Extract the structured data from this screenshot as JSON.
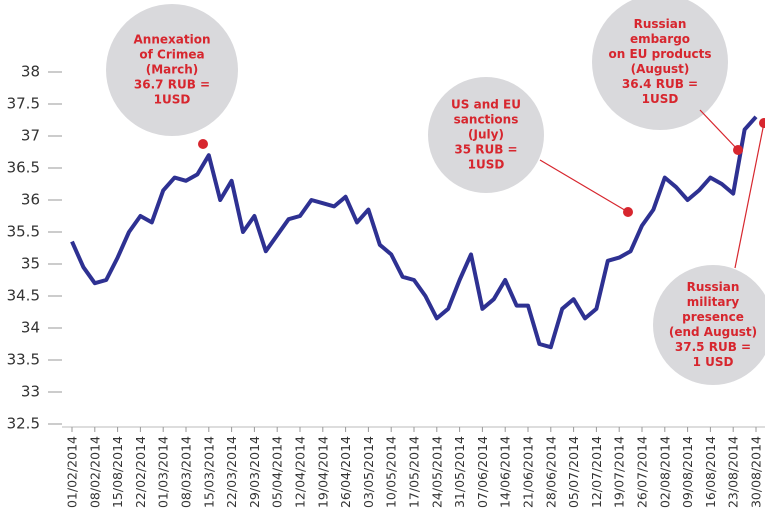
{
  "chart_data": {
    "type": "line",
    "categories": [
      "01/02/2014",
      null,
      "08/02/2014",
      null,
      "15/08/2014",
      null,
      "22/02/2014",
      null,
      "01/03/2014",
      null,
      "08/03/2014",
      null,
      "15/03/2014",
      null,
      "22/03/2014",
      null,
      "29/03/2014",
      null,
      "05/04/2014",
      null,
      "12/04/2014",
      null,
      "19/04/2014",
      null,
      "26/04/2014",
      null,
      "03/05/2014",
      null,
      "10/05/2014",
      null,
      "17/05/2014",
      null,
      "24/05/2014",
      null,
      "31/05/2014",
      null,
      "07/06/2014",
      null,
      "14/06/2014",
      null,
      "21/06/2014",
      null,
      "28/06/2014",
      null,
      "05/07/2014",
      null,
      "12/07/2014",
      null,
      "19/07/2014",
      null,
      "26/07/2014",
      null,
      "02/08/2014",
      null,
      "09/08/2014",
      null,
      "16/08/2014",
      null,
      "23/08/2014",
      null,
      "30/08/2014"
    ],
    "series": [
      {
        "color": "#2e3192",
        "values": [
          35.35,
          34.95,
          34.7,
          34.75,
          35.1,
          35.5,
          35.75,
          35.65,
          36.15,
          36.35,
          36.3,
          36.4,
          36.7,
          36.0,
          36.3,
          35.5,
          35.75,
          35.2,
          35.45,
          35.7,
          35.75,
          36.0,
          35.95,
          35.9,
          36.05,
          35.65,
          35.85,
          35.3,
          35.15,
          34.8,
          34.75,
          34.5,
          34.15,
          34.3,
          34.75,
          35.15,
          34.3,
          34.45,
          34.75,
          34.35,
          34.35,
          33.75,
          33.7,
          34.3,
          34.45,
          34.15,
          34.3,
          35.05,
          35.1,
          35.2,
          35.6,
          35.85,
          36.35,
          36.2,
          36.0,
          36.15,
          36.35,
          36.25,
          36.1,
          37.1,
          37.3
        ]
      }
    ],
    "ylim": [
      32.5,
      38
    ],
    "yticks": [
      32.5,
      33,
      33.5,
      34,
      34.5,
      35,
      35.5,
      36,
      36.5,
      37,
      37.5,
      38
    ],
    "annotations": [
      {
        "lines": [
          "Annexation",
          "of Crimea",
          "(March)",
          "36.7 RUB =",
          "1USD"
        ]
      },
      {
        "lines": [
          "US and EU",
          "sanctions",
          "(July)",
          "35 RUB =",
          "1USD"
        ]
      },
      {
        "lines": [
          "Russian",
          "embargo",
          "on EU products",
          "(August)",
          "36.4 RUB =",
          "1USD"
        ]
      },
      {
        "lines": [
          "Russian",
          "military",
          "presence",
          "(end August)",
          "37.5 RUB =",
          "1 USD"
        ]
      }
    ]
  }
}
